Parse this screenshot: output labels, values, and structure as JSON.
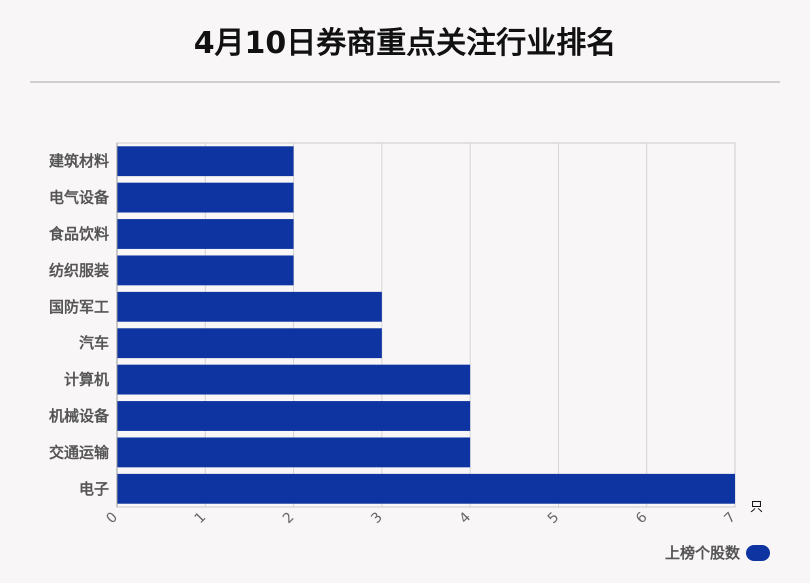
{
  "title": "4月10日券商重点关注行业排名",
  "chart_data": {
    "type": "bar",
    "orientation": "horizontal",
    "title": "4月10日券商重点关注行业排名",
    "categories": [
      "建筑材料",
      "电气设备",
      "食品饮料",
      "纺织服装",
      "国防军工",
      "汽车",
      "计算机",
      "机械设备",
      "交通运输",
      "电子"
    ],
    "series": [
      {
        "name": "上榜个股数",
        "values": [
          2,
          2,
          2,
          2,
          3,
          3,
          4,
          4,
          4,
          7
        ]
      }
    ],
    "xlim": [
      0,
      7
    ],
    "xticks": [
      "0",
      "1",
      "2",
      "3",
      "4",
      "5",
      "6",
      "7"
    ],
    "xunit": "只",
    "grid": true,
    "legend_position": "bottom-right",
    "bar_color": "#0d34a0"
  },
  "legend": {
    "label": "上榜个股数"
  }
}
